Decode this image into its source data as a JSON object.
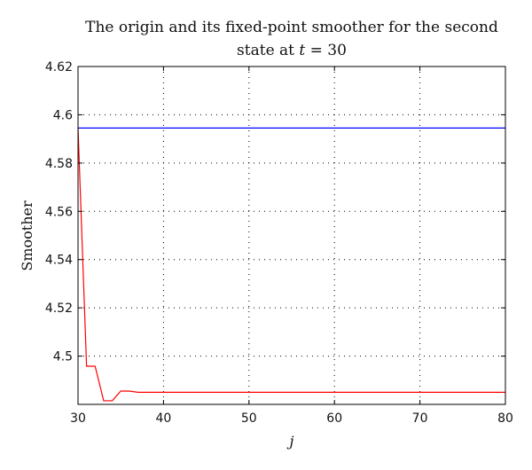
{
  "chart_data": {
    "type": "line",
    "title_line1": "The origin and its fixed-point smoother for the second",
    "title_line2_prefix": "state at ",
    "title_line2_var": "t",
    "title_line2_suffix": " = 30",
    "xlabel": "j",
    "ylabel": "Smoother",
    "xlim": [
      30,
      80
    ],
    "ylim": [
      4.48,
      4.62
    ],
    "x_ticks": [
      "30",
      "40",
      "50",
      "60",
      "70",
      "80"
    ],
    "y_ticks": [
      "4.5",
      "4.52",
      "4.54",
      "4.56",
      "4.58",
      "4.6",
      "4.62"
    ],
    "y_tick_values": [
      4.5,
      4.52,
      4.54,
      4.56,
      4.58,
      4.6,
      4.62
    ],
    "x_tick_values": [
      30,
      40,
      50,
      60,
      70,
      80
    ],
    "grid": true,
    "series": [
      {
        "color": "#0000ff",
        "x": [
          30,
          80
        ],
        "y": [
          4.5945,
          4.5945
        ]
      },
      {
        "color": "#ff0000",
        "x": [
          30,
          31,
          32,
          33,
          34,
          35,
          36,
          37,
          38,
          39,
          40,
          45,
          50,
          55,
          60,
          65,
          70,
          75,
          80
        ],
        "y": [
          4.5945,
          4.4958,
          4.4958,
          4.4815,
          4.4815,
          4.4855,
          4.4855,
          4.485,
          4.485,
          4.485,
          4.485,
          4.485,
          4.485,
          4.485,
          4.485,
          4.485,
          4.485,
          4.485,
          4.485
        ]
      }
    ]
  }
}
